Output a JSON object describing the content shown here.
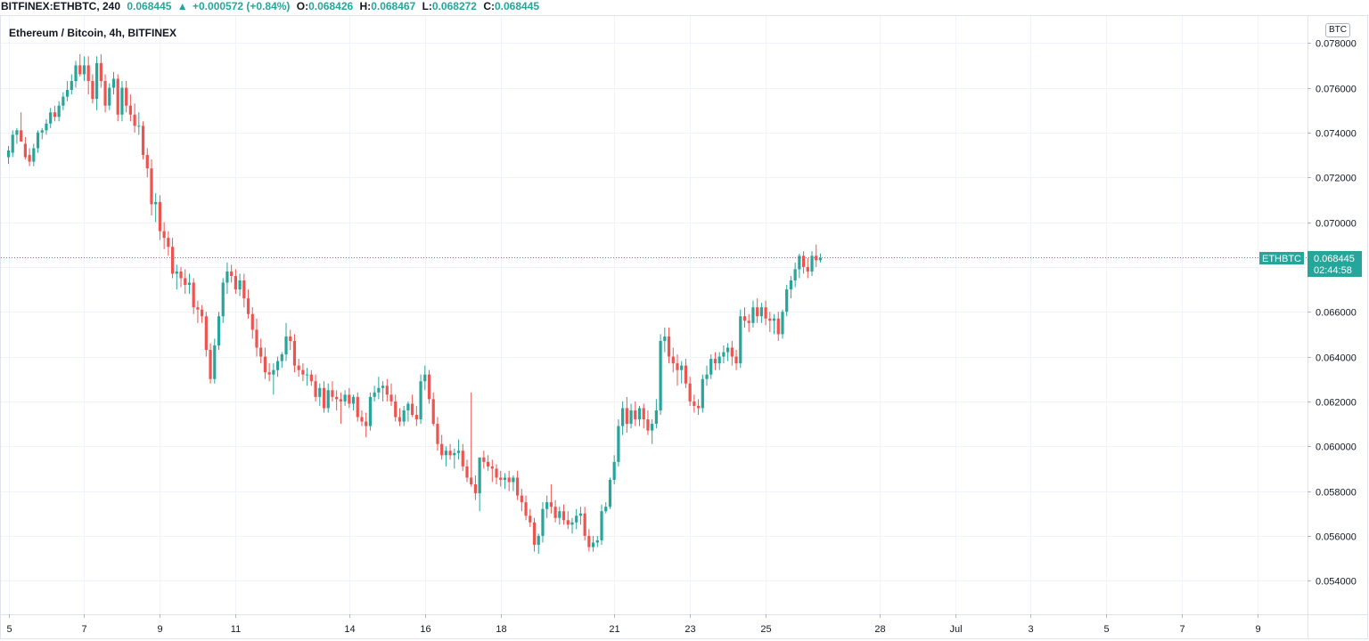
{
  "header": {
    "symbol": "BITFINEX:ETHBTC, 240",
    "last": "0.068445",
    "change": "+0.000572 (+0.84%)",
    "open_label": "O:",
    "open": "0.068426",
    "high_label": "H:",
    "high": "0.068467",
    "low_label": "L:",
    "low": "0.068272",
    "close_label": "C:",
    "close": "0.068445"
  },
  "legend_title": "Ethereum / Bitcoin, 4h, BITFINEX",
  "currency_badge": "BTC",
  "price_tag": {
    "symbol": "ETHBTC",
    "price": "0.068445",
    "countdown": "02:44:58"
  },
  "colors": {
    "up": "#26a69a",
    "down": "#ef5350",
    "grid": "#f0f3fa",
    "axis_text": "#131722"
  },
  "chart_data": {
    "type": "candlestick",
    "title": "Ethereum / Bitcoin, 4h, BITFINEX",
    "interval": "4h",
    "ylim": [
      0.0525,
      0.0792
    ],
    "yticks": [
      "0.078000",
      "0.076000",
      "0.074000",
      "0.072000",
      "0.070000",
      "0.068000",
      "0.066000",
      "0.064000",
      "0.062000",
      "0.060000",
      "0.058000",
      "0.056000",
      "0.054000"
    ],
    "yticks_values": [
      0.078,
      0.076,
      0.074,
      0.072,
      0.07,
      0.068,
      0.066,
      0.064,
      0.062,
      0.06,
      0.058,
      0.056,
      0.054
    ],
    "x_tick_labels": [
      "5",
      "7",
      "9",
      "11",
      "14",
      "16",
      "18",
      "21",
      "23",
      "25",
      "28",
      "Jul",
      "3",
      "5",
      "7",
      "9"
    ],
    "x_tick_bars": [
      0,
      18,
      36,
      54,
      81,
      99,
      117,
      144,
      162,
      180,
      207,
      225,
      243,
      261,
      279,
      297
    ],
    "last_price": 0.068445,
    "grid": true,
    "candles_ohlc": [
      [
        0.0729,
        0.0734,
        0.0726,
        0.0732
      ],
      [
        0.0731,
        0.0741,
        0.0729,
        0.0739
      ],
      [
        0.0739,
        0.0742,
        0.0735,
        0.0741
      ],
      [
        0.0741,
        0.0749,
        0.0736,
        0.0736
      ],
      [
        0.0735,
        0.0738,
        0.0728,
        0.0729
      ],
      [
        0.073,
        0.0733,
        0.0725,
        0.0727
      ],
      [
        0.0727,
        0.0735,
        0.0725,
        0.0733
      ],
      [
        0.0733,
        0.0741,
        0.0731,
        0.074
      ],
      [
        0.074,
        0.0742,
        0.0737,
        0.0741
      ],
      [
        0.0741,
        0.0746,
        0.0739,
        0.0744
      ],
      [
        0.0744,
        0.0751,
        0.0742,
        0.0749
      ],
      [
        0.0749,
        0.0752,
        0.0745,
        0.0747
      ],
      [
        0.0747,
        0.0754,
        0.0745,
        0.0752
      ],
      [
        0.0752,
        0.0758,
        0.075,
        0.0756
      ],
      [
        0.0756,
        0.0763,
        0.0754,
        0.0759
      ],
      [
        0.0759,
        0.0766,
        0.0757,
        0.0763
      ],
      [
        0.0763,
        0.0772,
        0.076,
        0.077
      ],
      [
        0.077,
        0.0775,
        0.0765,
        0.0766
      ],
      [
        0.0766,
        0.0774,
        0.0763,
        0.077
      ],
      [
        0.077,
        0.0774,
        0.0757,
        0.0763
      ],
      [
        0.0763,
        0.0766,
        0.0753,
        0.0755
      ],
      [
        0.0755,
        0.0774,
        0.075,
        0.0771
      ],
      [
        0.0771,
        0.0775,
        0.076,
        0.0763
      ],
      [
        0.0763,
        0.0766,
        0.0749,
        0.0752
      ],
      [
        0.0752,
        0.0762,
        0.075,
        0.076
      ],
      [
        0.076,
        0.0767,
        0.0757,
        0.0764
      ],
      [
        0.0764,
        0.0766,
        0.0745,
        0.0748
      ],
      [
        0.0748,
        0.0763,
        0.0745,
        0.076
      ],
      [
        0.076,
        0.0763,
        0.0749,
        0.0752
      ],
      [
        0.0752,
        0.0757,
        0.0745,
        0.0748
      ],
      [
        0.0748,
        0.0753,
        0.074,
        0.0743
      ],
      [
        0.0743,
        0.0749,
        0.0739,
        0.0743
      ],
      [
        0.0743,
        0.0745,
        0.0728,
        0.073
      ],
      [
        0.073,
        0.0733,
        0.072,
        0.0724
      ],
      [
        0.0724,
        0.0728,
        0.0703,
        0.0708
      ],
      [
        0.0708,
        0.0713,
        0.07,
        0.0709
      ],
      [
        0.0709,
        0.0712,
        0.0692,
        0.0696
      ],
      [
        0.0696,
        0.07,
        0.0688,
        0.0693
      ],
      [
        0.0693,
        0.0696,
        0.0685,
        0.0689
      ],
      [
        0.0689,
        0.0693,
        0.0675,
        0.0677
      ],
      [
        0.0677,
        0.0681,
        0.067,
        0.0678
      ],
      [
        0.0678,
        0.068,
        0.0671,
        0.0675
      ],
      [
        0.0675,
        0.0679,
        0.0668,
        0.0672
      ],
      [
        0.0672,
        0.0677,
        0.0668,
        0.0673
      ],
      [
        0.0673,
        0.0675,
        0.0659,
        0.0662
      ],
      [
        0.0662,
        0.0665,
        0.0655,
        0.0661
      ],
      [
        0.0661,
        0.0663,
        0.0655,
        0.0658
      ],
      [
        0.0658,
        0.066,
        0.064,
        0.0643
      ],
      [
        0.0643,
        0.0646,
        0.0628,
        0.063
      ],
      [
        0.063,
        0.0648,
        0.0628,
        0.0645
      ],
      [
        0.0645,
        0.066,
        0.0643,
        0.0658
      ],
      [
        0.0658,
        0.0675,
        0.0655,
        0.0673
      ],
      [
        0.0673,
        0.0682,
        0.0668,
        0.0678
      ],
      [
        0.0678,
        0.0681,
        0.0673,
        0.0676
      ],
      [
        0.0676,
        0.0679,
        0.0668,
        0.067
      ],
      [
        0.067,
        0.0677,
        0.0667,
        0.0674
      ],
      [
        0.0674,
        0.0677,
        0.0662,
        0.0666
      ],
      [
        0.0666,
        0.067,
        0.0657,
        0.0659
      ],
      [
        0.0659,
        0.0662,
        0.0648,
        0.0652
      ],
      [
        0.0652,
        0.0657,
        0.064,
        0.0644
      ],
      [
        0.0644,
        0.0648,
        0.0637,
        0.064
      ],
      [
        0.064,
        0.0644,
        0.063,
        0.0633
      ],
      [
        0.0633,
        0.0637,
        0.0629,
        0.0632
      ],
      [
        0.0632,
        0.0637,
        0.0623,
        0.0634
      ],
      [
        0.0634,
        0.064,
        0.0631,
        0.0638
      ],
      [
        0.0638,
        0.0642,
        0.0635,
        0.0641
      ],
      [
        0.0641,
        0.0655,
        0.0638,
        0.0649
      ],
      [
        0.0649,
        0.0652,
        0.0643,
        0.0647
      ],
      [
        0.0647,
        0.065,
        0.0633,
        0.0636
      ],
      [
        0.0636,
        0.0639,
        0.0631,
        0.0634
      ],
      [
        0.0634,
        0.0637,
        0.0629,
        0.0632
      ],
      [
        0.0632,
        0.0635,
        0.0627,
        0.0632
      ],
      [
        0.0632,
        0.0634,
        0.0627,
        0.0629
      ],
      [
        0.0629,
        0.0632,
        0.062,
        0.0622
      ],
      [
        0.0622,
        0.0628,
        0.0618,
        0.0626
      ],
      [
        0.0626,
        0.0629,
        0.0615,
        0.0617
      ],
      [
        0.0617,
        0.0628,
        0.0615,
        0.0625
      ],
      [
        0.0625,
        0.0629,
        0.062,
        0.0622
      ],
      [
        0.0622,
        0.0625,
        0.0616,
        0.0621
      ],
      [
        0.0621,
        0.0624,
        0.061,
        0.062
      ],
      [
        0.062,
        0.0625,
        0.0618,
        0.0623
      ],
      [
        0.0623,
        0.0626,
        0.0617,
        0.0619
      ],
      [
        0.0619,
        0.0623,
        0.0616,
        0.0622
      ],
      [
        0.0622,
        0.0624,
        0.0611,
        0.0613
      ],
      [
        0.0613,
        0.0616,
        0.0609,
        0.0611
      ],
      [
        0.0611,
        0.0615,
        0.0604,
        0.0609
      ],
      [
        0.0609,
        0.0624,
        0.0607,
        0.0622
      ],
      [
        0.0622,
        0.0627,
        0.062,
        0.0624
      ],
      [
        0.0624,
        0.0631,
        0.0621,
        0.0626
      ],
      [
        0.0626,
        0.0629,
        0.062,
        0.0627
      ],
      [
        0.0627,
        0.063,
        0.062,
        0.0623
      ],
      [
        0.0623,
        0.0628,
        0.0618,
        0.062
      ],
      [
        0.062,
        0.0623,
        0.0611,
        0.0613
      ],
      [
        0.0613,
        0.0617,
        0.0609,
        0.0611
      ],
      [
        0.0611,
        0.0618,
        0.0609,
        0.0616
      ],
      [
        0.0616,
        0.062,
        0.0611,
        0.0619
      ],
      [
        0.0619,
        0.0623,
        0.0613,
        0.0614
      ],
      [
        0.0614,
        0.0618,
        0.0609,
        0.0612
      ],
      [
        0.0612,
        0.0632,
        0.061,
        0.0629
      ],
      [
        0.0629,
        0.0636,
        0.0625,
        0.0632
      ],
      [
        0.0632,
        0.0634,
        0.0619,
        0.0621
      ],
      [
        0.0621,
        0.0624,
        0.0609,
        0.061
      ],
      [
        0.061,
        0.0613,
        0.0598,
        0.0601
      ],
      [
        0.0601,
        0.0605,
        0.0594,
        0.0596
      ],
      [
        0.0596,
        0.06,
        0.0591,
        0.0598
      ],
      [
        0.0598,
        0.0601,
        0.0594,
        0.0596
      ],
      [
        0.0596,
        0.0599,
        0.059,
        0.0597
      ],
      [
        0.0597,
        0.0603,
        0.0594,
        0.0598
      ],
      [
        0.0598,
        0.0601,
        0.0589,
        0.0591
      ],
      [
        0.0591,
        0.0594,
        0.0584,
        0.0586
      ],
      [
        0.0586,
        0.0624,
        0.0582,
        0.0583
      ],
      [
        0.0583,
        0.0587,
        0.0576,
        0.0579
      ],
      [
        0.0579,
        0.0587,
        0.0571,
        0.0595
      ],
      [
        0.0595,
        0.0598,
        0.059,
        0.0593
      ],
      [
        0.0593,
        0.0596,
        0.0589,
        0.0591
      ],
      [
        0.0591,
        0.0594,
        0.0584,
        0.059
      ],
      [
        0.059,
        0.0592,
        0.0583,
        0.0586
      ],
      [
        0.0586,
        0.0589,
        0.0582,
        0.0585
      ],
      [
        0.0585,
        0.0588,
        0.0581,
        0.0586
      ],
      [
        0.0586,
        0.0589,
        0.058,
        0.0584
      ],
      [
        0.0584,
        0.0587,
        0.058,
        0.0586
      ],
      [
        0.0586,
        0.0589,
        0.0576,
        0.0578
      ],
      [
        0.0578,
        0.0581,
        0.0571,
        0.0575
      ],
      [
        0.0575,
        0.0578,
        0.0567,
        0.0569
      ],
      [
        0.0569,
        0.0572,
        0.0564,
        0.0566
      ],
      [
        0.0566,
        0.0568,
        0.0553,
        0.0556
      ],
      [
        0.0556,
        0.0561,
        0.0552,
        0.056
      ],
      [
        0.056,
        0.0575,
        0.0557,
        0.0572
      ],
      [
        0.0572,
        0.0578,
        0.0568,
        0.0575
      ],
      [
        0.0575,
        0.0583,
        0.057,
        0.0573
      ],
      [
        0.0573,
        0.0576,
        0.0566,
        0.0568
      ],
      [
        0.0568,
        0.0573,
        0.0565,
        0.0571
      ],
      [
        0.0571,
        0.0574,
        0.0565,
        0.0567
      ],
      [
        0.0567,
        0.0571,
        0.0563,
        0.0565
      ],
      [
        0.0565,
        0.0568,
        0.0561,
        0.0566
      ],
      [
        0.0566,
        0.0572,
        0.0563,
        0.0569
      ],
      [
        0.0569,
        0.0573,
        0.0565,
        0.057
      ],
      [
        0.057,
        0.0573,
        0.0558,
        0.056
      ],
      [
        0.056,
        0.0563,
        0.0553,
        0.0555
      ],
      [
        0.0555,
        0.056,
        0.0553,
        0.0557
      ],
      [
        0.0557,
        0.056,
        0.0555,
        0.0558
      ],
      [
        0.0558,
        0.0574,
        0.0556,
        0.0571
      ],
      [
        0.0571,
        0.0575,
        0.057,
        0.0573
      ],
      [
        0.0573,
        0.0586,
        0.0572,
        0.0585
      ],
      [
        0.0585,
        0.0596,
        0.0583,
        0.0593
      ],
      [
        0.0593,
        0.0612,
        0.0591,
        0.0609
      ],
      [
        0.0609,
        0.062,
        0.0605,
        0.0617
      ],
      [
        0.0617,
        0.0622,
        0.0606,
        0.061
      ],
      [
        0.061,
        0.0619,
        0.0608,
        0.0616
      ],
      [
        0.0616,
        0.062,
        0.0609,
        0.0612
      ],
      [
        0.0612,
        0.0618,
        0.0609,
        0.0617
      ],
      [
        0.0617,
        0.0619,
        0.0608,
        0.0612
      ],
      [
        0.0612,
        0.0616,
        0.0605,
        0.0607
      ],
      [
        0.0607,
        0.0612,
        0.0601,
        0.061
      ],
      [
        0.061,
        0.0621,
        0.0608,
        0.0616
      ],
      [
        0.0616,
        0.065,
        0.0614,
        0.0647
      ],
      [
        0.0647,
        0.0653,
        0.0642,
        0.0649
      ],
      [
        0.0649,
        0.0653,
        0.0637,
        0.064
      ],
      [
        0.064,
        0.0644,
        0.0633,
        0.0637
      ],
      [
        0.0637,
        0.0641,
        0.0627,
        0.0634
      ],
      [
        0.0634,
        0.0638,
        0.0628,
        0.0636
      ],
      [
        0.0636,
        0.0639,
        0.0626,
        0.0628
      ],
      [
        0.0628,
        0.0631,
        0.0618,
        0.062
      ],
      [
        0.062,
        0.0623,
        0.0615,
        0.0618
      ],
      [
        0.0618,
        0.0621,
        0.0614,
        0.0617
      ],
      [
        0.0617,
        0.0632,
        0.0615,
        0.063
      ],
      [
        0.063,
        0.0636,
        0.0627,
        0.0632
      ],
      [
        0.0632,
        0.0641,
        0.063,
        0.0639
      ],
      [
        0.0639,
        0.0642,
        0.0634,
        0.0637
      ],
      [
        0.0637,
        0.0642,
        0.0634,
        0.064
      ],
      [
        0.064,
        0.0645,
        0.0637,
        0.0642
      ],
      [
        0.0642,
        0.0646,
        0.0638,
        0.0644
      ],
      [
        0.0644,
        0.0647,
        0.0636,
        0.064
      ],
      [
        0.064,
        0.0643,
        0.0634,
        0.0637
      ],
      [
        0.0637,
        0.0661,
        0.0635,
        0.0658
      ],
      [
        0.0658,
        0.0662,
        0.0653,
        0.0656
      ],
      [
        0.0656,
        0.0659,
        0.0651,
        0.0655
      ],
      [
        0.0655,
        0.0665,
        0.0653,
        0.0662
      ],
      [
        0.0662,
        0.0666,
        0.0655,
        0.0658
      ],
      [
        0.0658,
        0.0664,
        0.0655,
        0.0662
      ],
      [
        0.0662,
        0.0665,
        0.0654,
        0.0657
      ],
      [
        0.0657,
        0.066,
        0.0651,
        0.0656
      ],
      [
        0.0656,
        0.0659,
        0.065,
        0.0657
      ],
      [
        0.0657,
        0.066,
        0.0647,
        0.065
      ],
      [
        0.065,
        0.0661,
        0.0648,
        0.066
      ],
      [
        0.066,
        0.0672,
        0.0658,
        0.067
      ],
      [
        0.067,
        0.0676,
        0.0666,
        0.0674
      ],
      [
        0.0674,
        0.0682,
        0.0671,
        0.0679
      ],
      [
        0.0679,
        0.0686,
        0.0675,
        0.0685
      ],
      [
        0.0685,
        0.0687,
        0.0677,
        0.068
      ],
      [
        0.068,
        0.0684,
        0.0675,
        0.0678
      ],
      [
        0.0678,
        0.0687,
        0.0676,
        0.0685
      ],
      [
        0.0685,
        0.069,
        0.068,
        0.0683
      ],
      [
        0.0683,
        0.0686,
        0.0682,
        0.0684
      ]
    ]
  }
}
